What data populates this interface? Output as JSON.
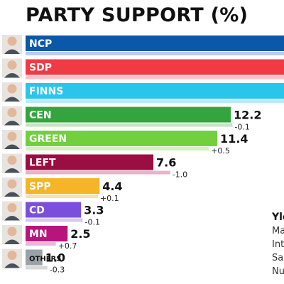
{
  "chart_data": {
    "type": "bar",
    "orientation": "horizontal",
    "title": "PARTY SUPPORT (%)",
    "categories": [
      "NCP",
      "SDP",
      "FINNS",
      "CEN",
      "GREEN",
      "LEFT",
      "SPP",
      "CD",
      "MN",
      "OTHERS"
    ],
    "series": [
      {
        "values": [
          null,
          null,
          null,
          12.2,
          11.4,
          7.6,
          4.4,
          3.3,
          2.5,
          1.0
        ]
      }
    ],
    "value_labels": [
      "",
      "",
      "",
      "12.2",
      "11.4",
      "7.6",
      "4.4",
      "3.3",
      "2.5",
      "1.0"
    ],
    "change_labels": [
      "",
      "",
      "",
      "-0.1",
      "+0.5",
      "-1.0",
      "+0.1",
      "-0.1",
      "+0.7",
      "-0.3"
    ],
    "changes": [
      null,
      null,
      null,
      -0.1,
      0.5,
      -1.0,
      0.1,
      -0.1,
      0.7,
      -0.3
    ],
    "colors": [
      "#0b57a8",
      "#f23a45",
      "#2bc4ea",
      "#34a43f",
      "#72cf3e",
      "#9c0d41",
      "#f4b527",
      "#7b4fdc",
      "#b9137e",
      "#9aa2a8"
    ],
    "previous_colors": [
      "#b9cde6",
      "#f7c3c7",
      "#bdeaf6",
      "#c6e3c6",
      "#d3efc4",
      "#e8b4c6",
      "#f8e2ad",
      "#d6c9f3",
      "#ebb7d9",
      "#d6d9dc"
    ],
    "xlim": [
      0,
      20
    ],
    "grid": false,
    "legend": "none"
  },
  "source": {
    "title": "Yle",
    "lines": [
      "Ma",
      "Int",
      "Sa",
      "Nu"
    ]
  }
}
